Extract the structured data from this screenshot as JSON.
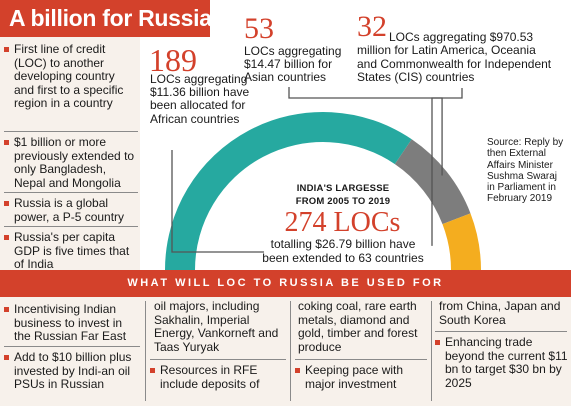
{
  "title": "A billion for Russia",
  "left_bullets": [
    "First line of credit (LOC) to another developing country and first to a specific region in a country",
    "$1 billion or more previously extended to only Bangladesh, Nepal and Mongolia",
    "Russia is a global power, a P-5 country",
    "Russia's per capita GDP is five times that of India"
  ],
  "chart_data": {
    "type": "pie",
    "title": "INDIA'S LARGESSE FROM 2005 TO 2019",
    "total_locs": 274,
    "total_label": "274 LOCs",
    "total_text": "totalling $26.79 billion have been extended to 63 countries",
    "categories": [
      "Africa",
      "Asia",
      "Latin America, Oceania and CIS"
    ],
    "values": [
      189,
      53,
      32
    ],
    "colors": {
      "africa": "#26a9a0",
      "asia": "#7d7d7d",
      "cis": "#f4ad1f"
    }
  },
  "callouts": {
    "africa": {
      "number": "189",
      "text": "LOCs aggregating $11.36 billion have been allocated for African countries"
    },
    "asia": {
      "number": "53",
      "text": "LOCs aggregating $14.47 billion for Asian countries"
    },
    "cis": {
      "number": "32",
      "text_first": "LOCs aggregating $970.53",
      "text_rest": "million for Latin America, Oceania and Commonwealth for Independent States (CIS) countries"
    }
  },
  "source": "Source: Reply by then External Affairs Minister Sushma Swaraj in Parliament in February 2019",
  "center_heading_1": "INDIA'S LARGESSE",
  "center_heading_2": "FROM  2005 TO 2019",
  "banner": "WHAT WILL LOC TO RUSSIA BE USED FOR",
  "uses": {
    "col1_b1": "Incentivising Indian business to invest in the Russian Far East",
    "col1_b2": "Add to $10 billion plus invested by Indi-an oil PSUs  in Russian",
    "col2_cont": "oil majors, including Sakhalin, Imperial Energy, Vankorneft and Taas Yuryak",
    "col2_b1": "Resources in RFE include deposits of",
    "col3_cont": "coking coal, rare earth metals, diamond and gold, timber and forest produce",
    "col3_b1": "Keeping pace with major investment",
    "col4_cont": "from China, Japan and South Korea",
    "col4_b1": "Enhancing trade beyond the current $11 bn to target $30 bn by 2025"
  },
  "colors": {
    "accent": "#d3412b",
    "panel": "#f7f1eb"
  }
}
